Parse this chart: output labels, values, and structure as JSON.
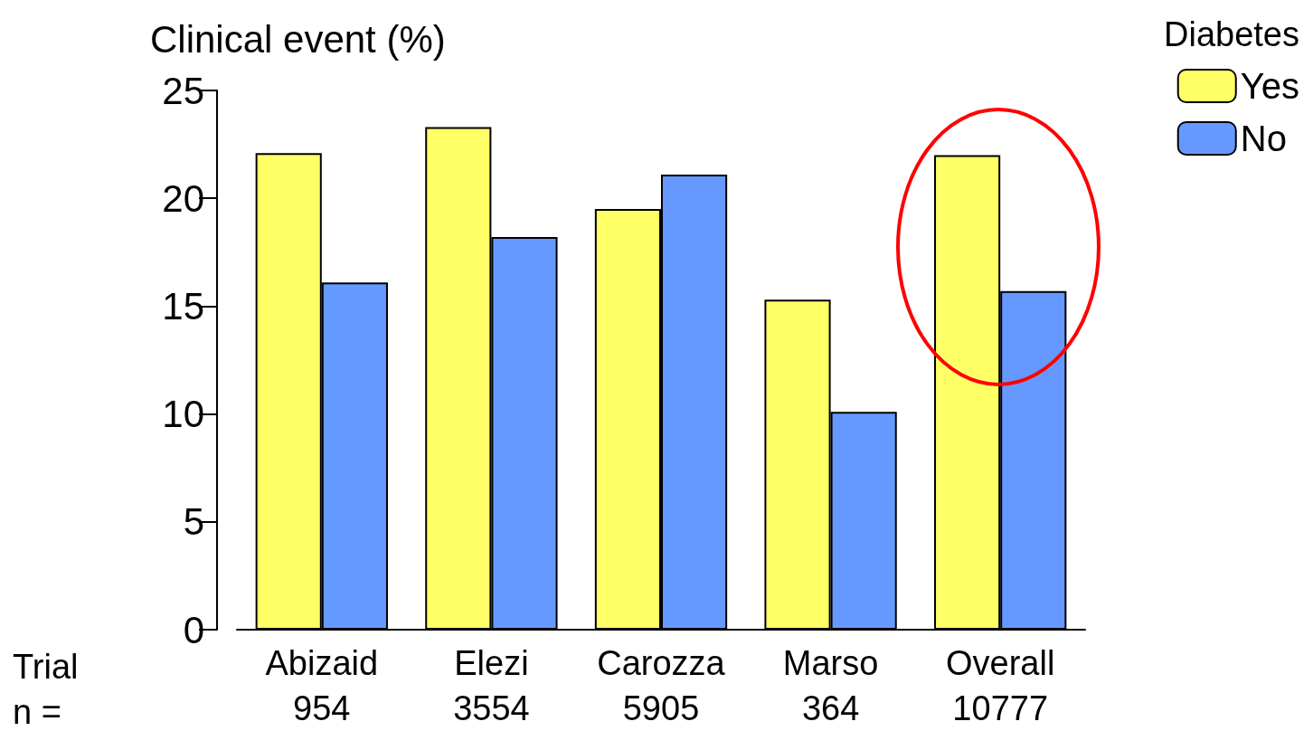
{
  "chart_data": {
    "type": "bar",
    "ylabel": "Clinical event (%)",
    "legend_title": "Diabetes",
    "legend": "top right",
    "categories": [
      "Abizaid\n954",
      "Elezi\n3554",
      "Carozza\n5905",
      "Marso\n364",
      "Overall\n10777"
    ],
    "series": [
      {
        "name": "Yes",
        "color": "#ffff66",
        "values": [
          22.1,
          23.3,
          19.5,
          15.3,
          22.0
        ]
      },
      {
        "name": "No",
        "color": "#6699ff",
        "values": [
          16.1,
          18.2,
          21.1,
          10.1,
          15.7
        ]
      }
    ],
    "ylim": [
      0,
      25
    ],
    "yticks": [
      0,
      5,
      10,
      15,
      20,
      25
    ],
    "grid": false,
    "annotations": [
      "Trial",
      "n ="
    ]
  }
}
